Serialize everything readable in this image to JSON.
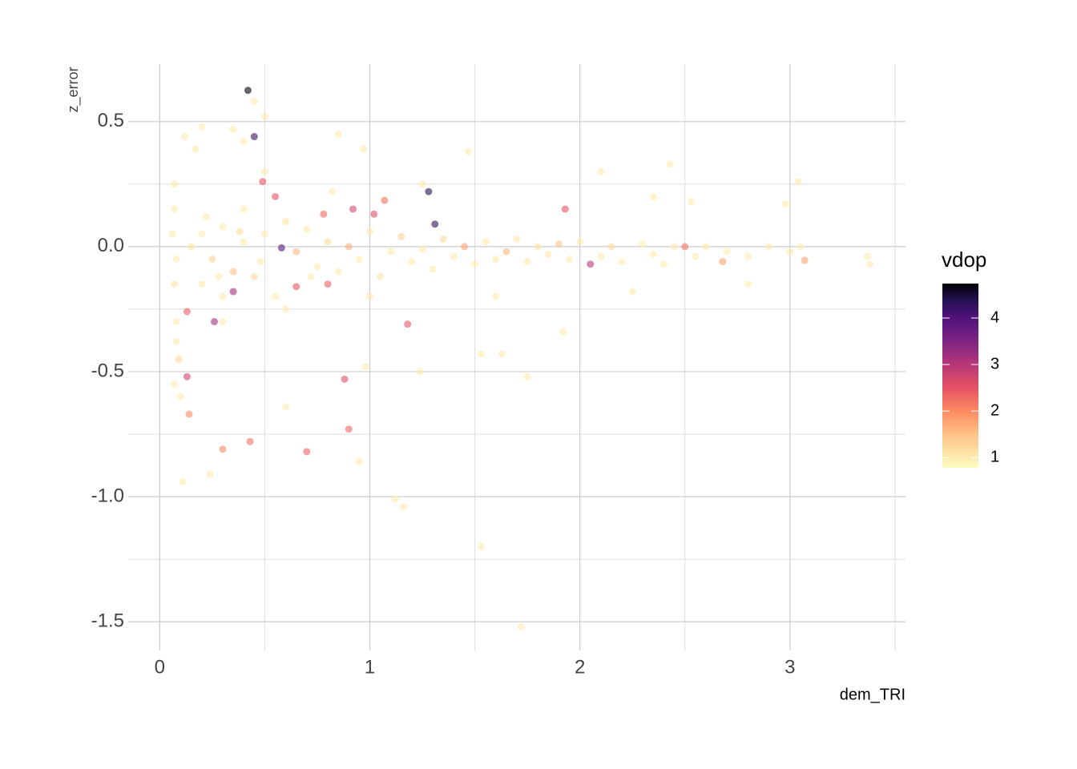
{
  "chart_data": {
    "type": "scatter",
    "x_label": "dem_TRI",
    "y_label": "z_error",
    "color_label": "vdop",
    "xlim": [
      -0.15,
      3.55
    ],
    "ylim": [
      -1.615,
      0.73
    ],
    "xticks": [
      0,
      1,
      2,
      3
    ],
    "yticks": [
      0.5,
      {
        "value": 0,
        "label": "0.0"
      },
      -0.5,
      {
        "value": -1,
        "label": "-1.0"
      },
      -1.5
    ],
    "x_minor_ticks": [
      0.5,
      1.5,
      2.5,
      3.5
    ],
    "y_minor_ticks": [
      0.25,
      -0.25,
      -0.75,
      -1.25
    ],
    "grid": true,
    "clim": [
      0.78,
      4.74
    ],
    "cticks": [
      1,
      2,
      3,
      4
    ],
    "colorscale": [
      [
        0.78,
        "#fcfdbf"
      ],
      [
        1.5,
        "#fec287"
      ],
      [
        2,
        "#fc8961"
      ],
      [
        2.5,
        "#e75263"
      ],
      [
        3,
        "#b73779"
      ],
      [
        3.5,
        "#7e2482"
      ],
      [
        4,
        "#51127c"
      ],
      [
        4.4,
        "#221150"
      ],
      [
        4.74,
        "#000004"
      ]
    ],
    "opacity": 0.6,
    "x": [
      0.42,
      0.45,
      1.07,
      1.93,
      0.58,
      1.28,
      1.31,
      0.13,
      0.14,
      0.3,
      0.43,
      0.7,
      0.88,
      0.9,
      1.18,
      0.26,
      0.13,
      2.05,
      0.35,
      0.49,
      0.55,
      0.92,
      1.02,
      0.78,
      0.8,
      0.65,
      2.5,
      2.68,
      3.07,
      1.72,
      1.53,
      1.12,
      1.16,
      0.24,
      0.11,
      0.95,
      0.6,
      1.75,
      1.24,
      0.98,
      1.53,
      1.63,
      1.92,
      3.37,
      3.38,
      3.04,
      2.98,
      2.43,
      2.53,
      2.1,
      1.47,
      0.97,
      0.85,
      0.5,
      0.45,
      0.2,
      0.12,
      0.17,
      0.35,
      0.4,
      0.07,
      0.07,
      0.06,
      0.08,
      0.07,
      0.08,
      0.08,
      0.09,
      0.07,
      0.1,
      0.15,
      0.2,
      0.25,
      0.3,
      0.35,
      0.4,
      0.45,
      0.5,
      0.55,
      0.6,
      0.65,
      0.7,
      0.75,
      0.8,
      0.85,
      0.9,
      0.95,
      1.0,
      1.05,
      1.1,
      1.15,
      1.2,
      1.25,
      1.3,
      1.35,
      1.4,
      1.45,
      1.5,
      1.55,
      1.6,
      1.65,
      1.7,
      1.75,
      1.8,
      1.85,
      1.9,
      1.95,
      2.0,
      2.1,
      2.15,
      2.2,
      2.3,
      2.35,
      2.4,
      2.45,
      2.55,
      2.6,
      2.7,
      2.8,
      2.9,
      3.0,
      3.05,
      0.2,
      0.3,
      0.4,
      0.6,
      1.25,
      1.6,
      2.25,
      2.8,
      2.35,
      1.0,
      0.3,
      0.5,
      0.22,
      0.28,
      0.38,
      0.48,
      0.72,
      0.82
    ],
    "values": [
      0.625,
      0.44,
      0.185,
      0.15,
      -0.005,
      0.22,
      0.09,
      -0.52,
      -0.67,
      -0.81,
      -0.78,
      -0.82,
      -0.53,
      -0.73,
      -0.31,
      -0.3,
      -0.26,
      -0.07,
      -0.18,
      0.26,
      0.2,
      0.15,
      0.13,
      0.13,
      -0.15,
      -0.16,
      0,
      -0.06,
      -0.055,
      -1.52,
      -1.2,
      -1.01,
      -1.04,
      -0.91,
      -0.94,
      -0.86,
      -0.64,
      -0.52,
      -0.5,
      -0.48,
      -0.43,
      -0.43,
      -0.34,
      -0.04,
      -0.07,
      0.26,
      0.17,
      0.33,
      0.18,
      0.3,
      0.38,
      0.39,
      0.45,
      0.52,
      0.58,
      0.48,
      0.44,
      0.39,
      0.47,
      0.42,
      0.25,
      0.15,
      0.05,
      -0.05,
      -0.15,
      -0.3,
      -0.38,
      -0.45,
      -0.55,
      -0.6,
      0,
      0.05,
      -0.05,
      0.08,
      -0.1,
      0.02,
      -0.12,
      0.05,
      -0.2,
      0.1,
      -0.02,
      0.07,
      -0.08,
      0.02,
      -0.1,
      0,
      -0.05,
      0.06,
      -0.12,
      -0.02,
      0.04,
      -0.06,
      -0.01,
      -0.09,
      0.03,
      -0.04,
      0,
      -0.07,
      0.02,
      -0.05,
      -0.02,
      0.03,
      -0.06,
      0,
      -0.03,
      0.01,
      -0.05,
      0.02,
      -0.04,
      0,
      -0.06,
      0.01,
      -0.03,
      -0.07,
      0,
      -0.04,
      0,
      -0.02,
      -0.04,
      0,
      -0.02,
      0,
      -0.15,
      -0.2,
      0.15,
      -0.25,
      0.25,
      -0.2,
      -0.18,
      -0.15,
      0.2,
      -0.2,
      -0.3,
      0.3,
      0.12,
      -0.12,
      0.06,
      -0.06,
      -0.12,
      0.22
    ],
    "color_values": [
      4.7,
      4.2,
      2.2,
      2.5,
      4.0,
      4.4,
      4.3,
      2.8,
      2.0,
      2.0,
      2.2,
      2.3,
      2.6,
      2.3,
      2.5,
      3.2,
      2.4,
      3.0,
      3.2,
      2.5,
      2.5,
      2.7,
      2.6,
      2.3,
      2.4,
      2.5,
      2.2,
      1.8,
      1.8,
      1,
      1,
      1,
      1,
      1,
      1,
      1,
      1,
      1,
      1,
      1,
      1,
      1,
      1,
      1,
      1,
      1,
      1,
      1,
      1,
      1,
      1,
      1,
      1,
      1,
      1,
      1,
      1,
      1,
      1,
      1,
      1,
      1,
      1,
      1,
      1.1,
      1,
      1,
      1.2,
      1,
      1,
      1.1,
      1,
      1.3,
      1,
      1.5,
      1,
      1.2,
      1,
      1,
      1.1,
      1.6,
      1,
      1,
      1.2,
      1,
      1.7,
      1,
      1,
      1.1,
      1,
      1.3,
      1,
      1,
      1,
      1.2,
      1,
      1.8,
      1,
      1,
      1,
      1.6,
      1,
      1,
      1.1,
      1,
      1.5,
      1,
      1,
      1,
      1.2,
      1,
      1,
      1,
      1,
      1,
      1,
      1,
      1,
      1,
      1,
      1,
      1,
      1,
      1,
      1,
      1,
      1,
      1,
      1,
      1,
      1,
      1,
      1,
      1,
      1,
      1,
      1.2,
      1,
      1,
      1
    ]
  }
}
